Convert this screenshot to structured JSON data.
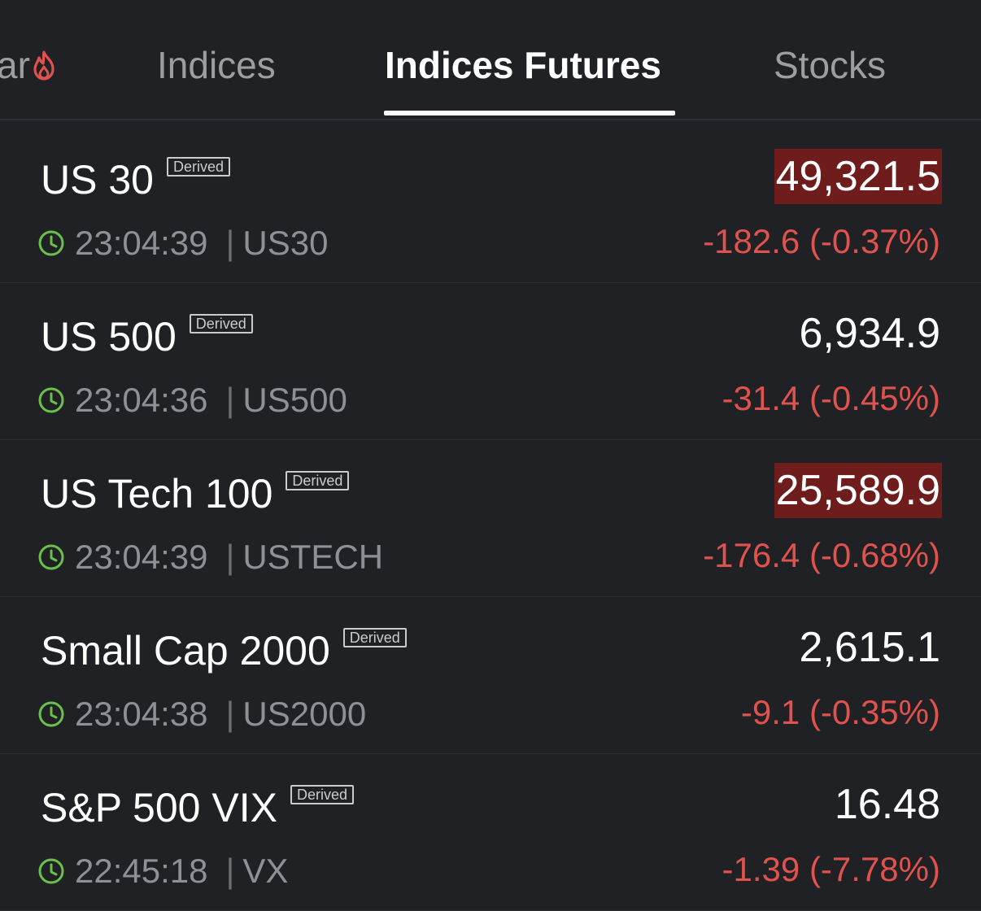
{
  "tabs": [
    {
      "label": "ar",
      "has_hot_icon": true
    },
    {
      "label": "Indices"
    },
    {
      "label": "Indices Futures",
      "active": true
    },
    {
      "label": "Stocks"
    }
  ],
  "colors": {
    "background": "#1f2125",
    "negative": "#e0524d",
    "flash_down": "#6e1c1c",
    "clock": "#6cc04a",
    "hot_icon": "#e0524d"
  },
  "instruments": [
    {
      "name": "US 30",
      "badge": "Derived",
      "time": "23:04:39",
      "symbol": "US30",
      "price": "49,321.5",
      "price_flash": true,
      "change": "-182.6 (-0.37%)"
    },
    {
      "name": "US 500",
      "badge": "Derived",
      "time": "23:04:36",
      "symbol": "US500",
      "price": "6,934.9",
      "price_flash": false,
      "change": "-31.4 (-0.45%)"
    },
    {
      "name": "US Tech 100",
      "badge": "Derived",
      "time": "23:04:39",
      "symbol": "USTECH",
      "price": "25,589.9",
      "price_flash": true,
      "change": "-176.4 (-0.68%)"
    },
    {
      "name": "Small Cap 2000",
      "badge": "Derived",
      "time": "23:04:38",
      "symbol": "US2000",
      "price": "2,615.1",
      "price_flash": false,
      "change": "-9.1 (-0.35%)"
    },
    {
      "name": "S&P 500 VIX",
      "badge": "Derived",
      "time": "22:45:18",
      "symbol": "VX",
      "price": "16.48",
      "price_flash": false,
      "change": "-1.39 (-7.78%)"
    }
  ],
  "separator": "|"
}
